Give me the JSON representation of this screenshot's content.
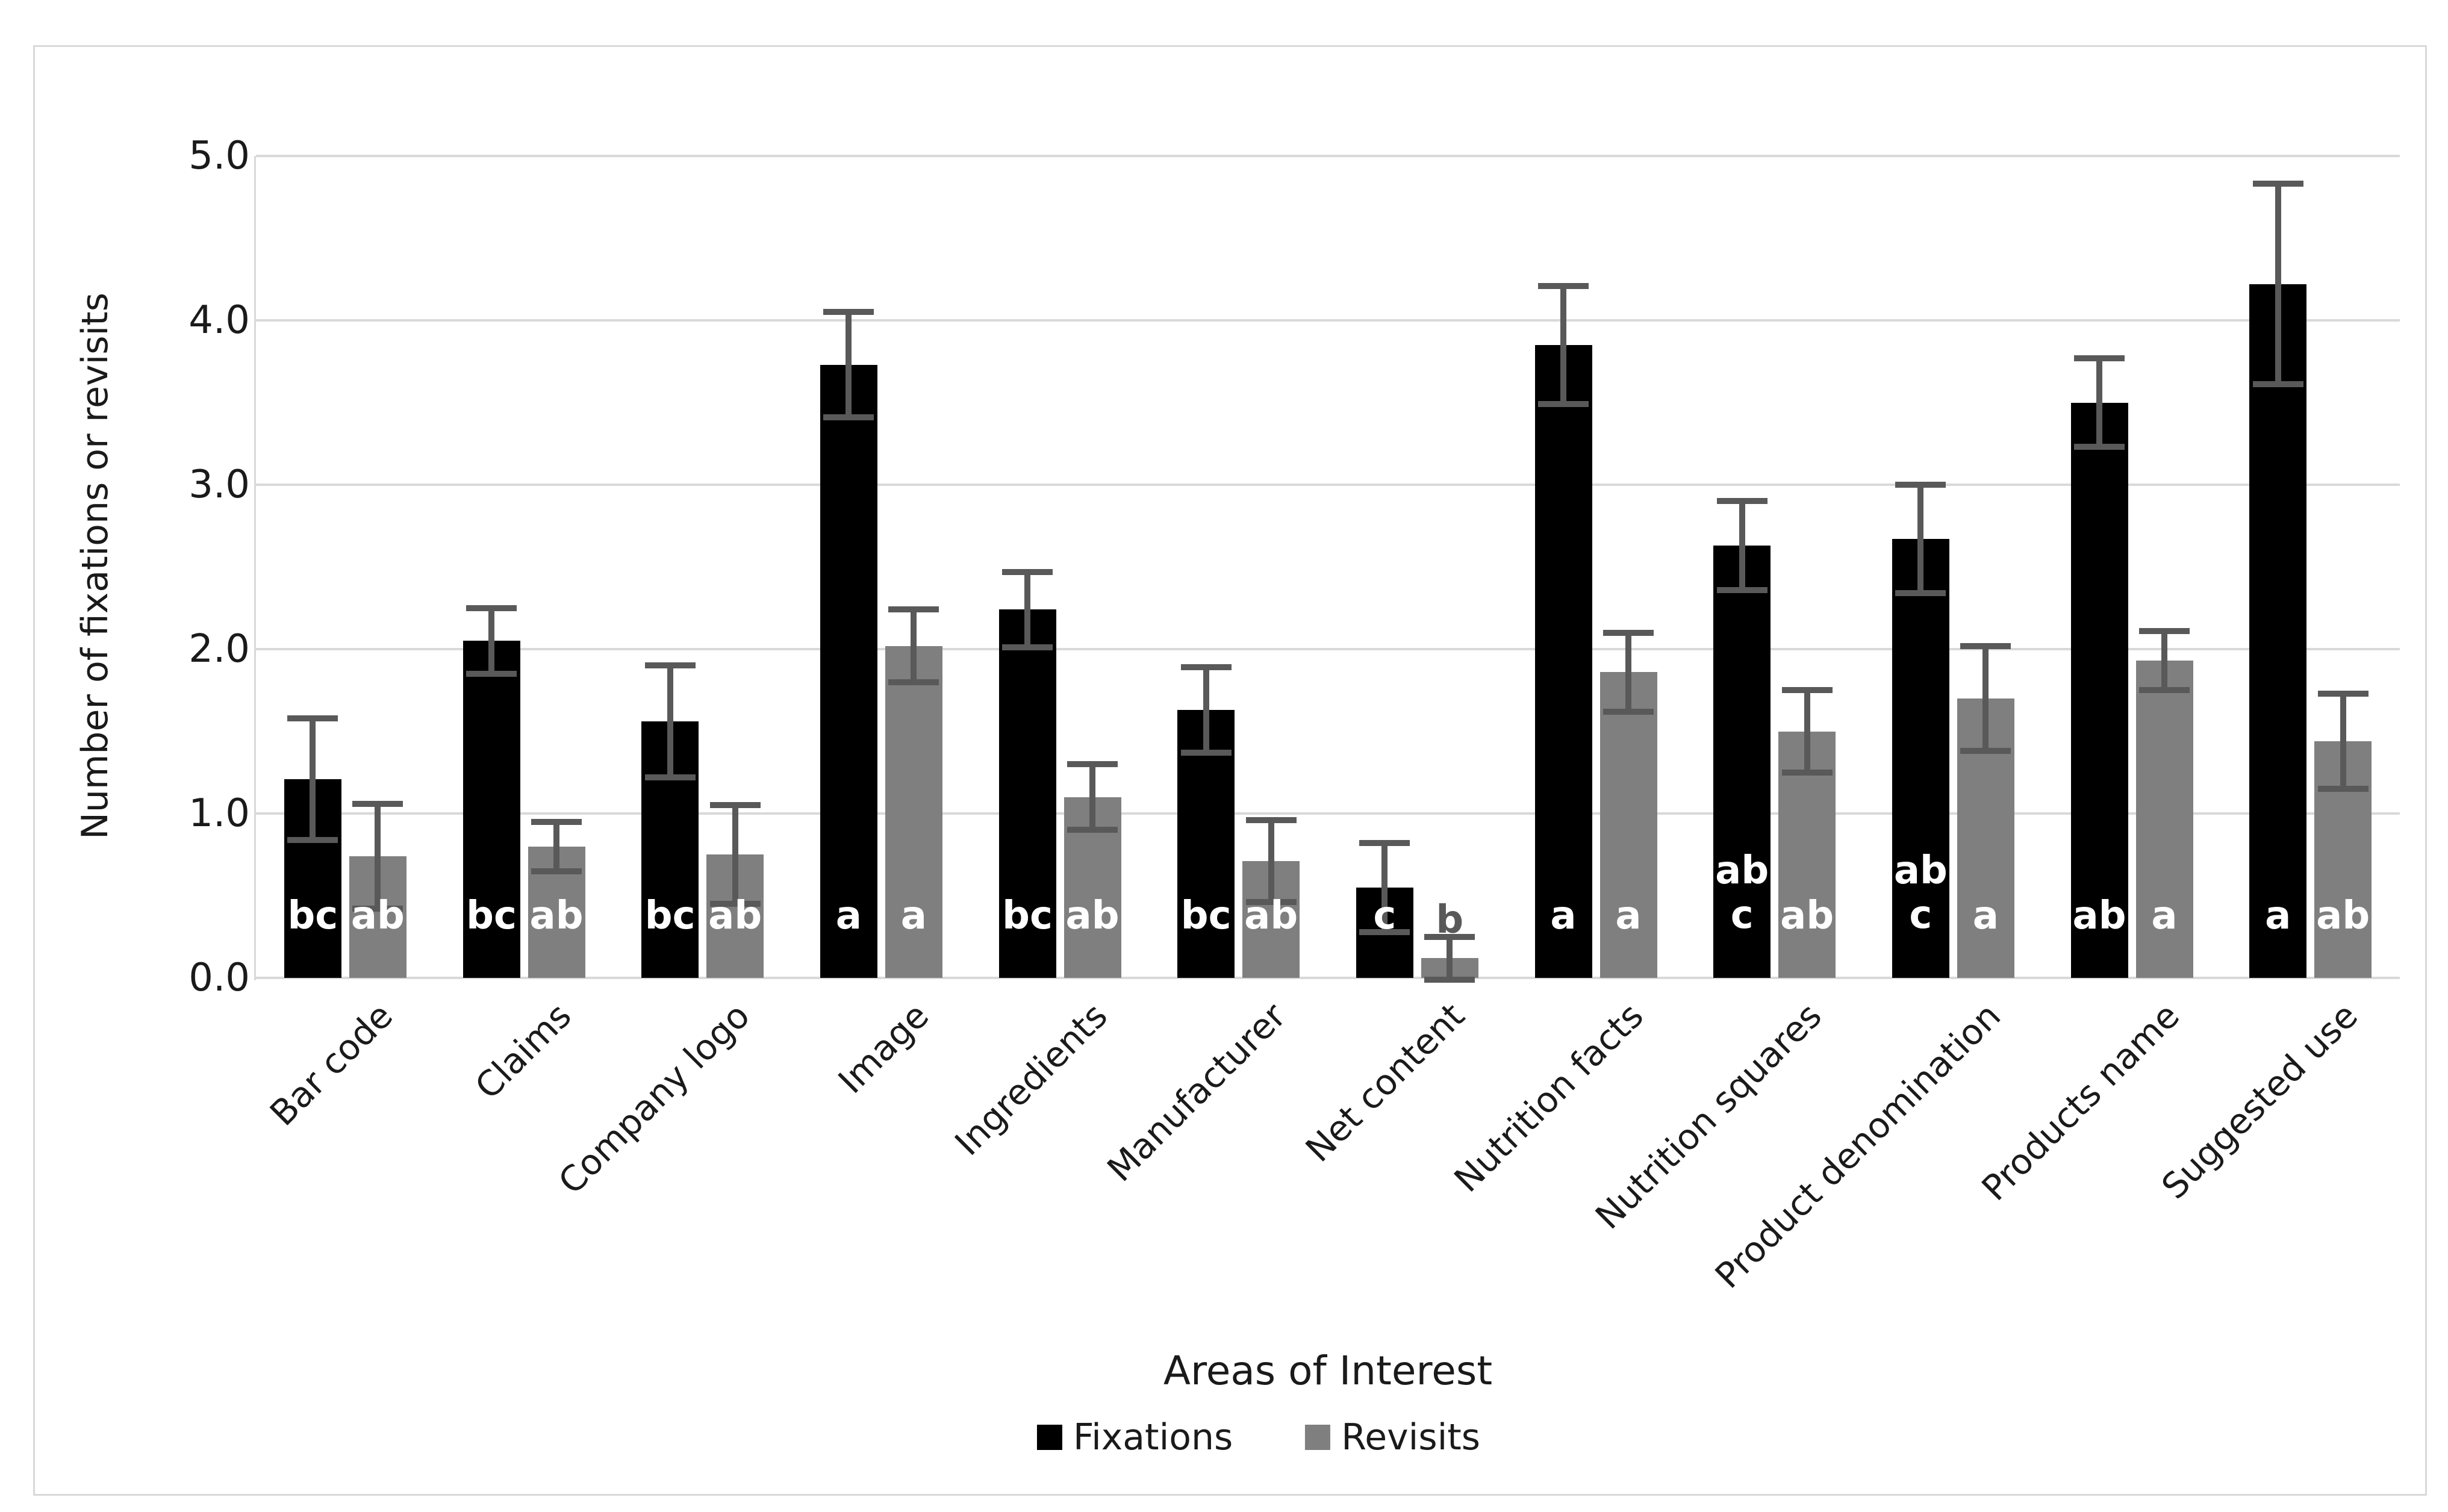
{
  "chart_data": {
    "type": "bar",
    "title": "",
    "xlabel": "Areas of Interest",
    "ylabel": "Number of fixations or revisits",
    "ylim": [
      0,
      5
    ],
    "ytick_labels": [
      "0.0",
      "1.0",
      "2.0",
      "3.0",
      "4.0",
      "5.0"
    ],
    "grid": true,
    "legend_position": "bottom-center",
    "gridline_color": "#d9d9d9",
    "frame_border_color": "#d9d9d9",
    "error_bar_color": "#595959",
    "annotation_inside_color": "#ffffff",
    "annotation_outside_color": "#595959",
    "categories": [
      "Bar code",
      "Claims",
      "Company logo",
      "Image",
      "Ingredients",
      "Manufacturer",
      "Net content",
      "Nutrition facts",
      "Nutrition squares",
      "Product denomination",
      "Products name",
      "Suggested use"
    ],
    "series": [
      {
        "name": "Fixations",
        "color": "#000000",
        "values": [
          1.21,
          2.05,
          1.56,
          3.73,
          2.24,
          1.63,
          0.55,
          3.85,
          2.63,
          2.67,
          3.5,
          4.22
        ],
        "error_bars": [
          0.37,
          0.2,
          0.34,
          0.32,
          0.23,
          0.26,
          0.27,
          0.36,
          0.27,
          0.33,
          0.27,
          0.61
        ],
        "significance_letters": [
          "bc",
          "bc",
          "bc",
          "a",
          "bc",
          "bc",
          "c",
          "a",
          "ab\nc",
          "ab\nc",
          "ab",
          "a"
        ],
        "letter_placements": [
          "inside",
          "inside",
          "inside",
          "inside",
          "inside",
          "inside",
          "inside",
          "inside",
          "inside",
          "inside",
          "inside",
          "inside"
        ]
      },
      {
        "name": "Revisits",
        "color": "#7f7f7f",
        "values": [
          0.74,
          0.8,
          0.75,
          2.02,
          1.1,
          0.71,
          0.12,
          1.86,
          1.5,
          1.7,
          1.93,
          1.44
        ],
        "error_bars": [
          0.32,
          0.15,
          0.3,
          0.22,
          0.2,
          0.25,
          0.13,
          0.24,
          0.25,
          0.32,
          0.18,
          0.29
        ],
        "significance_letters": [
          "ab",
          "ab",
          "ab",
          "a",
          "ab",
          "ab",
          "b",
          "a",
          "ab",
          "a",
          "a",
          "ab"
        ],
        "letter_placements": [
          "inside",
          "inside",
          "inside",
          "inside",
          "inside",
          "inside",
          "above",
          "inside",
          "inside",
          "inside",
          "inside",
          "inside"
        ]
      }
    ]
  }
}
